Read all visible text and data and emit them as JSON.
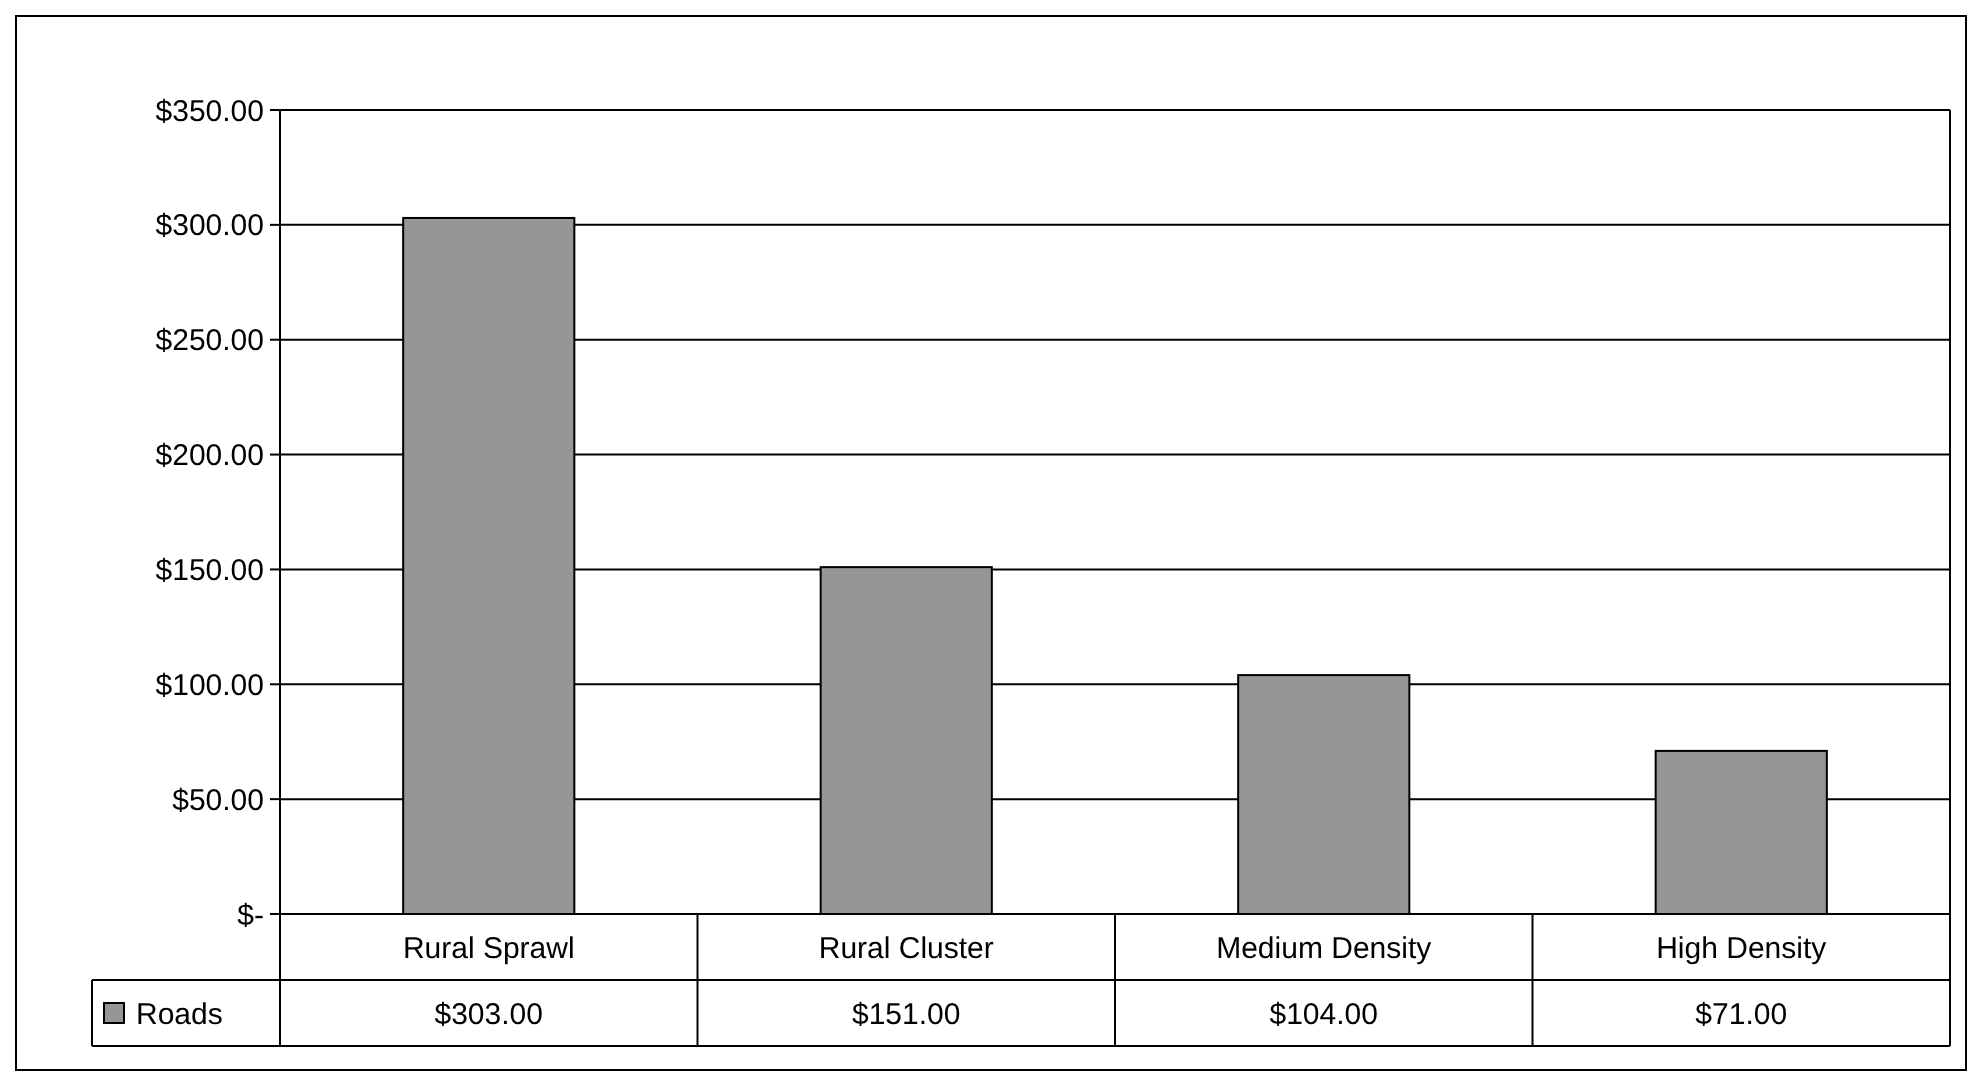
{
  "chart_data": {
    "type": "bar",
    "categories": [
      "Rural Sprawl",
      "Rural Cluster",
      "Medium Density",
      "High Density"
    ],
    "series": [
      {
        "name": "Roads",
        "color": "#969696",
        "values": [
          303,
          151,
          104,
          71
        ],
        "value_labels": [
          "$303.00",
          "$151.00",
          "$104.00",
          "$71.00"
        ]
      }
    ],
    "ylim": [
      0,
      350
    ],
    "yticks": [
      {
        "value": 0,
        "label": "$-"
      },
      {
        "value": 50,
        "label": "$50.00"
      },
      {
        "value": 100,
        "label": "$100.00"
      },
      {
        "value": 150,
        "label": "$150.00"
      },
      {
        "value": 200,
        "label": "$200.00"
      },
      {
        "value": 250,
        "label": "$250.00"
      },
      {
        "value": 300,
        "label": "$300.00"
      },
      {
        "value": 350,
        "label": "$350.00"
      }
    ],
    "grid": "y",
    "legend": "bottom left"
  }
}
